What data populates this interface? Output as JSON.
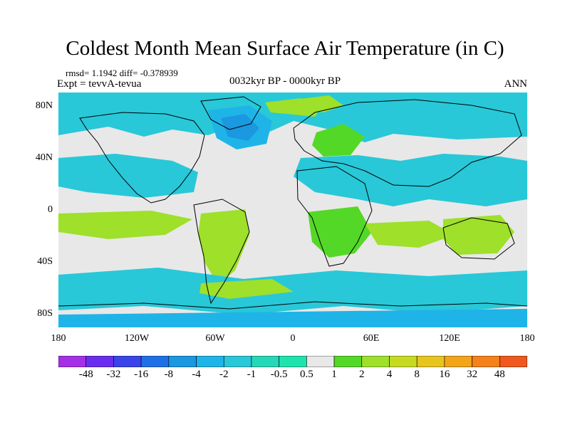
{
  "title": "Coldest Month Mean Surface Air Temperature (in C)",
  "stats": "rmsd= 1.1942 diff= -0.378939",
  "expt": "Expt = tevvA-tevua",
  "period": "0032kyr BP - 0000kyr BP",
  "season": "ANN",
  "lat_labels": [
    "80N",
    "40N",
    "0",
    "40S",
    "80S"
  ],
  "lon_labels": [
    "180",
    "120W",
    "60W",
    "0",
    "60E",
    "120E",
    "180"
  ],
  "colorbar": {
    "labels": [
      "-48",
      "-32",
      "-16",
      "-8",
      "-4",
      "-2",
      "-1",
      "-0.5",
      "0.5",
      "1",
      "2",
      "4",
      "8",
      "16",
      "32",
      "48"
    ],
    "colors": [
      "#a52fe6",
      "#6a2df0",
      "#3a44e8",
      "#1f70e6",
      "#1a98e0",
      "#1fb4e8",
      "#28c8d8",
      "#25d8b8",
      "#1ee3ac",
      "#e8e8e8",
      "#54d827",
      "#9ee02a",
      "#c7da22",
      "#e8c41e",
      "#f3a519",
      "#f4811a",
      "#f0581e"
    ]
  },
  "map": {
    "ocean_color": "#e8e8e8",
    "coastline_color": "#000000"
  }
}
